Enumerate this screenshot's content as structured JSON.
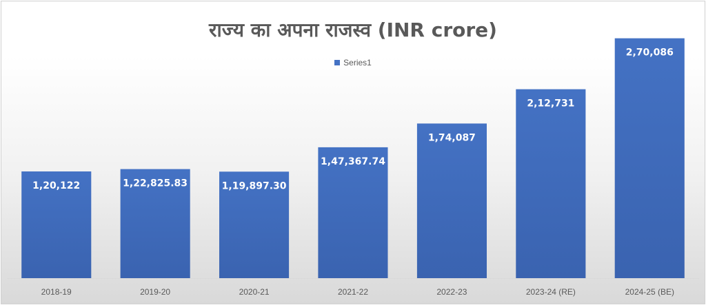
{
  "chart_data": {
    "type": "bar",
    "title": "राज्य का अपना राजस्व  (INR crore)",
    "categories": [
      "2018-19",
      "2019-20",
      "2020-21",
      "2021-22",
      "2022-23",
      "2023-24 (RE)",
      "2024-25 (BE)"
    ],
    "series": [
      {
        "name": "Series1",
        "values": [
          120122,
          122825.83,
          119897.3,
          147367.74,
          174087,
          212731,
          270086
        ],
        "labels": [
          "1,20,122",
          "1,22,825.83",
          "1,19,897.30",
          "1,47,367.74",
          "1,74,087",
          "2,12,731",
          "2,70,086"
        ]
      }
    ],
    "ylim": [
      0,
      300000
    ],
    "grid": false,
    "legend_position": "top",
    "bar_color": "#4472c4"
  }
}
